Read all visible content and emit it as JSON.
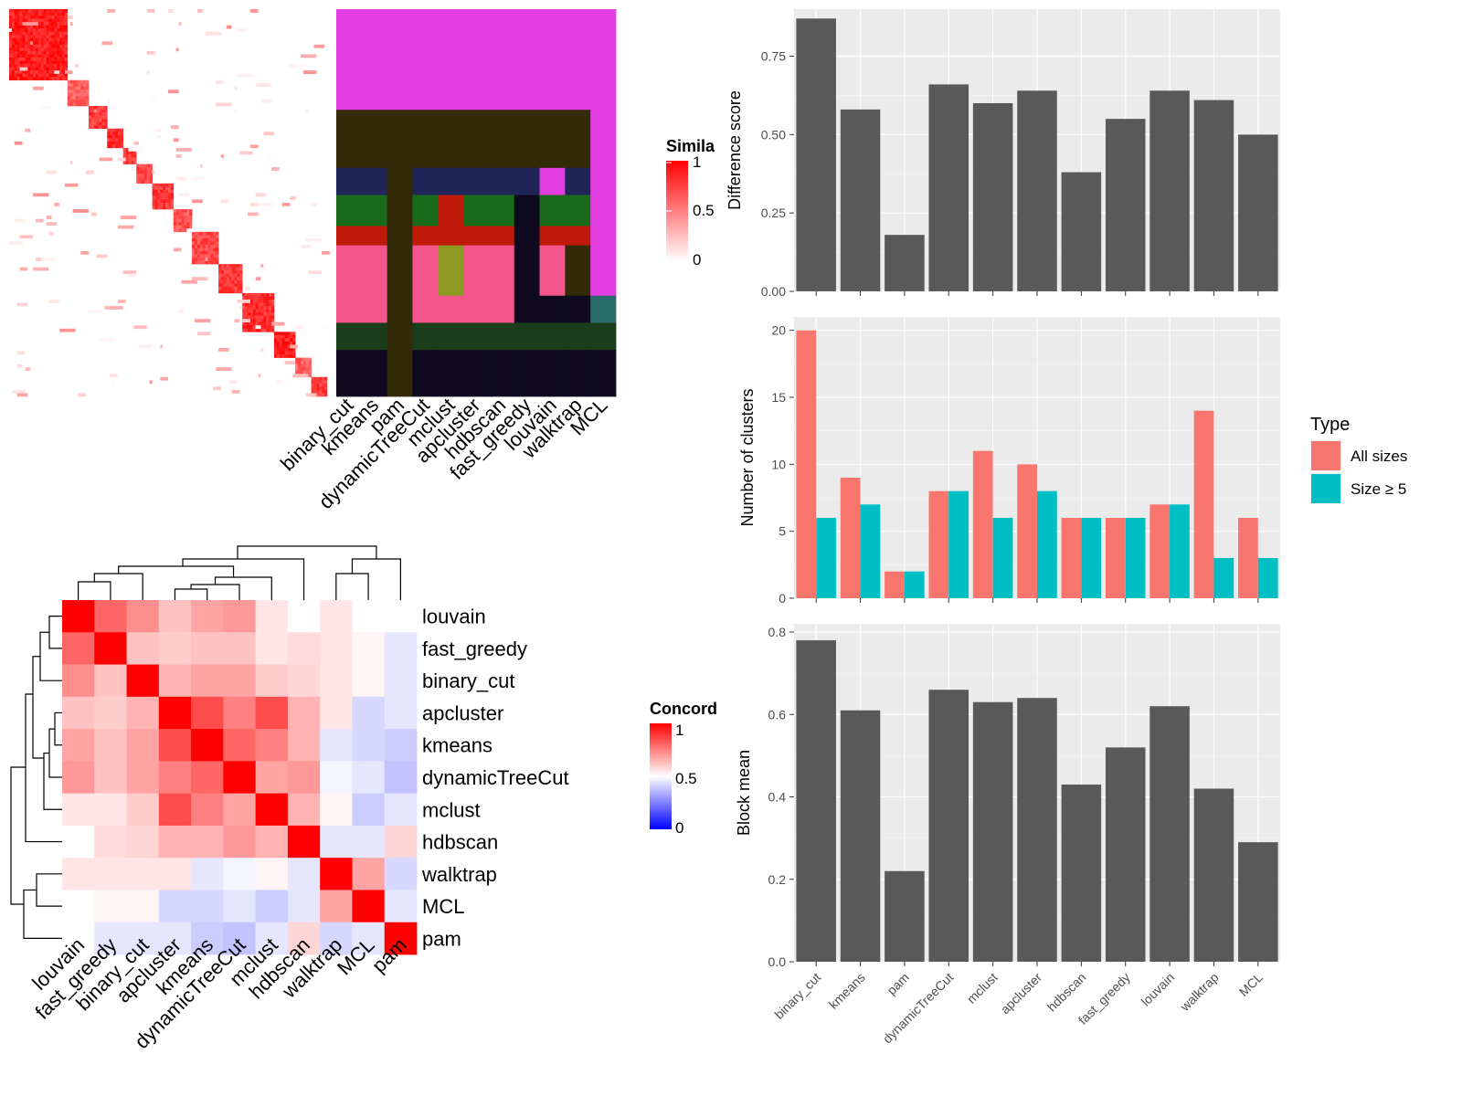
{
  "chart_data": [
    {
      "type": "heatmap",
      "title": "",
      "legend": {
        "title": "Simila",
        "ticks": [
          "1",
          "0.5",
          "0"
        ],
        "colors": [
          "#ffffff",
          "#ff0000"
        ]
      },
      "blocks_diagonal": [
        1.0,
        0.75,
        0.9,
        0.95,
        0.9,
        0.85,
        0.9,
        0.8,
        0.85,
        0.9,
        0.95
      ],
      "columns": [
        "binary_cut",
        "kmeans",
        "pam",
        "dynamicTreeCut",
        "mclust",
        "apcluster",
        "hdbscan",
        "fast_greedy",
        "louvain",
        "walktrap",
        "MCL"
      ],
      "annotation_palette": [
        "#e23ee2",
        "#332a0a",
        "#1f2557",
        "#1a6b1a",
        "#c01b0a",
        "#f4568c",
        "#0f0a1f",
        "#1a3d1a",
        "#8c9a24",
        "#2a6b6b",
        "#a59aa5"
      ]
    },
    {
      "type": "heatmap",
      "title": "",
      "rows": [
        "louvain",
        "fast_greedy",
        "binary_cut",
        "apcluster",
        "kmeans",
        "dynamicTreeCut",
        "mclust",
        "hdbscan",
        "walktrap",
        "MCL",
        "pam"
      ],
      "columns": [
        "louvain",
        "fast_greedy",
        "binary_cut",
        "apcluster",
        "kmeans",
        "dynamicTreeCut",
        "mclust",
        "hdbscan",
        "walktrap",
        "MCL",
        "pam"
      ],
      "values": [
        [
          1.0,
          0.8,
          0.72,
          0.62,
          0.68,
          0.7,
          0.55,
          0.5,
          0.55,
          0.5,
          0.5
        ],
        [
          0.8,
          1.0,
          0.62,
          0.6,
          0.62,
          0.62,
          0.55,
          0.57,
          0.55,
          0.52,
          0.45
        ],
        [
          0.72,
          0.62,
          1.0,
          0.65,
          0.68,
          0.68,
          0.6,
          0.58,
          0.55,
          0.52,
          0.45
        ],
        [
          0.62,
          0.6,
          0.65,
          1.0,
          0.85,
          0.75,
          0.85,
          0.65,
          0.55,
          0.42,
          0.45
        ],
        [
          0.68,
          0.62,
          0.68,
          0.85,
          1.0,
          0.8,
          0.75,
          0.65,
          0.45,
          0.42,
          0.4
        ],
        [
          0.7,
          0.62,
          0.68,
          0.75,
          0.8,
          1.0,
          0.68,
          0.7,
          0.48,
          0.45,
          0.38
        ],
        [
          0.55,
          0.55,
          0.6,
          0.85,
          0.75,
          0.68,
          1.0,
          0.65,
          0.52,
          0.4,
          0.45
        ],
        [
          0.5,
          0.57,
          0.58,
          0.65,
          0.65,
          0.7,
          0.65,
          1.0,
          0.45,
          0.45,
          0.58
        ],
        [
          0.55,
          0.55,
          0.55,
          0.55,
          0.45,
          0.48,
          0.52,
          0.45,
          1.0,
          0.68,
          0.42
        ],
        [
          0.5,
          0.52,
          0.52,
          0.42,
          0.42,
          0.45,
          0.4,
          0.45,
          0.68,
          1.0,
          0.45
        ],
        [
          0.5,
          0.45,
          0.45,
          0.45,
          0.4,
          0.38,
          0.45,
          0.58,
          0.42,
          0.45,
          1.0
        ]
      ],
      "legend": {
        "title": "Concord",
        "ticks": [
          "1",
          "0.5",
          "0"
        ],
        "colors": [
          "#0000ff",
          "#ffffff",
          "#ff0000"
        ]
      }
    },
    {
      "type": "bar",
      "categories": [
        "binary_cut",
        "kmeans",
        "pam",
        "dynamicTreeCut",
        "mclust",
        "apcluster",
        "hdbscan",
        "fast_greedy",
        "louvain",
        "walktrap",
        "MCL"
      ],
      "values": [
        0.87,
        0.58,
        0.18,
        0.66,
        0.6,
        0.64,
        0.38,
        0.55,
        0.64,
        0.61,
        0.5
      ],
      "ylabel": "Difference score",
      "ylim": [
        0,
        0.9
      ],
      "yticks": [
        "0.00",
        "0.25",
        "0.50",
        "0.75"
      ],
      "grid": true
    },
    {
      "type": "bar",
      "categories": [
        "binary_cut",
        "kmeans",
        "pam",
        "dynamicTreeCut",
        "mclust",
        "apcluster",
        "hdbscan",
        "fast_greedy",
        "louvain",
        "walktrap",
        "MCL"
      ],
      "series": [
        {
          "name": "All sizes",
          "color": "#f8766d",
          "values": [
            20,
            9,
            2,
            8,
            11,
            10,
            6,
            6,
            7,
            14,
            6
          ]
        },
        {
          "name": "Size ≥ 5",
          "color": "#00bfc4",
          "values": [
            6,
            7,
            2,
            8,
            6,
            8,
            6,
            6,
            7,
            3,
            3
          ]
        }
      ],
      "ylabel": "Number of clusters",
      "ylim": [
        0,
        21
      ],
      "yticks": [
        "0",
        "5",
        "10",
        "15",
        "20"
      ],
      "legend": {
        "title": "Type",
        "placement": "right"
      },
      "grid": true
    },
    {
      "type": "bar",
      "categories": [
        "binary_cut",
        "kmeans",
        "pam",
        "dynamicTreeCut",
        "mclust",
        "apcluster",
        "hdbscan",
        "fast_greedy",
        "louvain",
        "walktrap",
        "MCL"
      ],
      "values": [
        0.78,
        0.61,
        0.22,
        0.66,
        0.63,
        0.64,
        0.43,
        0.52,
        0.62,
        0.42,
        0.29
      ],
      "ylabel": "Block mean",
      "ylim": [
        0,
        0.82
      ],
      "yticks": [
        "0.0",
        "0.2",
        "0.4",
        "0.6",
        "0.8"
      ],
      "grid": true
    }
  ]
}
